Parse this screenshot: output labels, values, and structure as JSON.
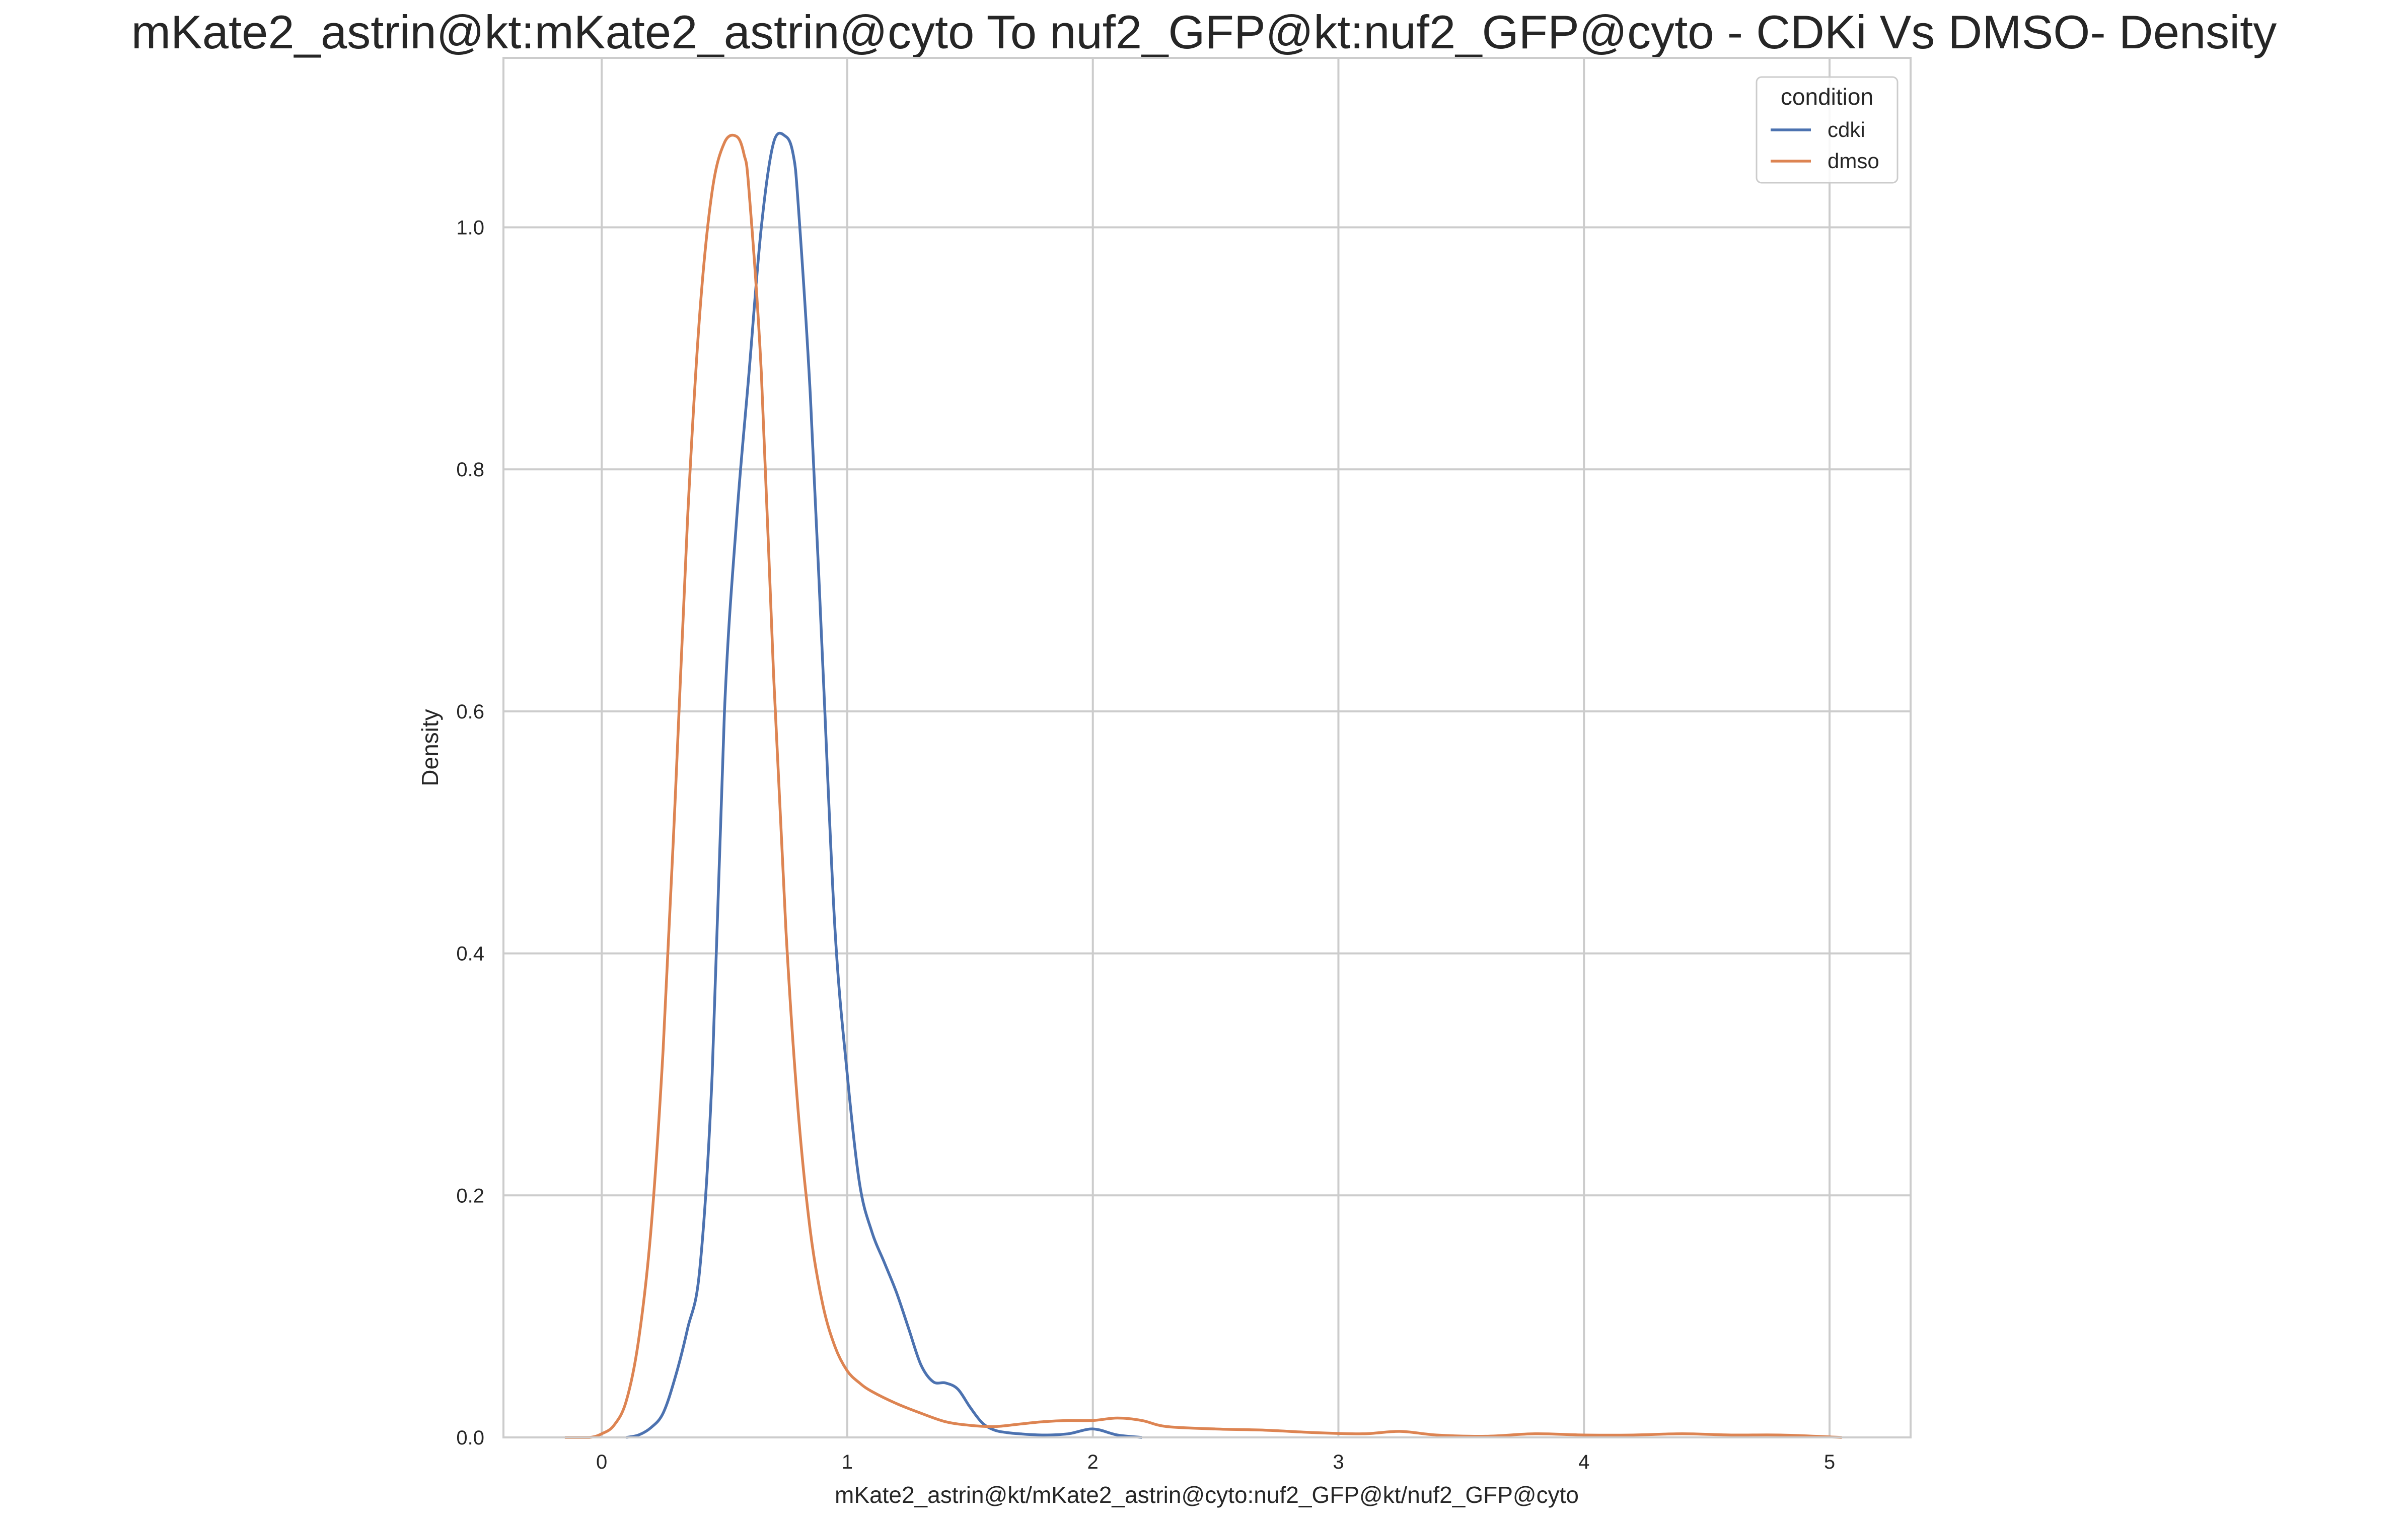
{
  "chart_data": {
    "type": "line",
    "title": "mKate2_astrin@kt:mKate2_astrin@cyto To nuf2_GFP@kt:nuf2_GFP@cyto - CDKi Vs DMSO- Density",
    "xlabel": "mKate2_astrin@kt/mKate2_astrin@cyto:nuf2_GFP@kt/nuf2_GFP@cyto",
    "ylabel": "Density",
    "xlim": [
      -0.4,
      5.33
    ],
    "ylim": [
      0,
      1.14
    ],
    "xticks": [
      0,
      1,
      2,
      3,
      4,
      5
    ],
    "xtick_labels": [
      "0",
      "1",
      "2",
      "3",
      "4",
      "5"
    ],
    "yticks": [
      0.0,
      0.2,
      0.4,
      0.6,
      0.8,
      1.0
    ],
    "ytick_labels": [
      "0.0",
      "0.2",
      "0.4",
      "0.6",
      "0.8",
      "1.0"
    ],
    "grid": true,
    "legend": {
      "title": "condition",
      "placement": "top-right"
    },
    "series": [
      {
        "name": "cdki",
        "color": "#4c72b0",
        "x": [
          0.1,
          0.15,
          0.2,
          0.25,
          0.3,
          0.35,
          0.4,
          0.45,
          0.5,
          0.55,
          0.6,
          0.65,
          0.7,
          0.75,
          0.78,
          0.8,
          0.85,
          0.9,
          0.95,
          1.0,
          1.05,
          1.1,
          1.15,
          1.2,
          1.25,
          1.3,
          1.35,
          1.4,
          1.45,
          1.5,
          1.55,
          1.6,
          1.65,
          1.7,
          1.8,
          1.9,
          2.0,
          2.1,
          2.2
        ],
        "y": [
          0.0,
          0.002,
          0.008,
          0.02,
          0.05,
          0.09,
          0.14,
          0.3,
          0.6,
          0.76,
          0.88,
          1.0,
          1.07,
          1.075,
          1.06,
          1.02,
          0.86,
          0.64,
          0.42,
          0.3,
          0.21,
          0.17,
          0.145,
          0.12,
          0.09,
          0.06,
          0.046,
          0.045,
          0.04,
          0.025,
          0.012,
          0.006,
          0.004,
          0.003,
          0.002,
          0.003,
          0.007,
          0.002,
          0.0
        ]
      },
      {
        "name": "dmso",
        "color": "#dd8452",
        "x": [
          -0.15,
          -0.05,
          0.0,
          0.05,
          0.1,
          0.15,
          0.2,
          0.25,
          0.3,
          0.35,
          0.4,
          0.45,
          0.5,
          0.55,
          0.58,
          0.6,
          0.65,
          0.7,
          0.75,
          0.8,
          0.85,
          0.9,
          0.95,
          1.0,
          1.05,
          1.1,
          1.2,
          1.3,
          1.4,
          1.5,
          1.6,
          1.7,
          1.8,
          1.9,
          2.0,
          2.1,
          2.2,
          2.3,
          2.5,
          2.7,
          2.9,
          3.1,
          3.25,
          3.4,
          3.6,
          3.8,
          4.0,
          4.2,
          4.4,
          4.6,
          4.8,
          5.05
        ],
        "y": [
          0.0,
          0.0,
          0.003,
          0.01,
          0.03,
          0.08,
          0.17,
          0.32,
          0.53,
          0.76,
          0.93,
          1.03,
          1.07,
          1.075,
          1.06,
          1.03,
          0.88,
          0.63,
          0.42,
          0.27,
          0.17,
          0.11,
          0.075,
          0.055,
          0.045,
          0.038,
          0.028,
          0.02,
          0.013,
          0.01,
          0.009,
          0.011,
          0.013,
          0.014,
          0.014,
          0.016,
          0.014,
          0.009,
          0.007,
          0.006,
          0.004,
          0.003,
          0.005,
          0.002,
          0.001,
          0.003,
          0.002,
          0.002,
          0.003,
          0.002,
          0.002,
          0.0
        ]
      }
    ]
  }
}
